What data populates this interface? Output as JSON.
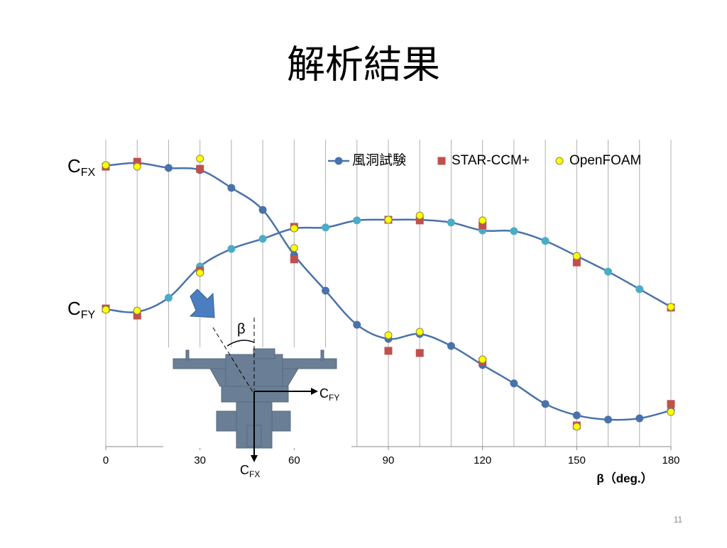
{
  "chart_data": {
    "type": "line",
    "title": "解析結果",
    "x_label": "β（deg.）",
    "page_number": "11",
    "cfx_label": {
      "main": "C",
      "sub": "FX"
    },
    "cfy_label": {
      "main": "C",
      "sub": "FY"
    },
    "diagram": {
      "angle": "β",
      "fy": {
        "main": "C",
        "sub": "FY"
      },
      "fx": {
        "main": "C",
        "sub": "FX"
      }
    },
    "x": [
      0,
      10,
      20,
      30,
      40,
      50,
      60,
      70,
      80,
      90,
      100,
      110,
      120,
      130,
      140,
      150,
      160,
      170,
      180
    ],
    "xlim": [
      0,
      180
    ],
    "xticks": [
      0,
      30,
      60,
      90,
      120,
      150,
      180
    ],
    "x_gridlines": [
      0,
      10,
      20,
      30,
      40,
      50,
      60,
      70,
      80,
      90,
      100,
      110,
      120,
      130,
      140,
      150,
      160,
      170,
      180
    ],
    "ylim": [
      0,
      100
    ],
    "series": [
      {
        "name": "風洞試験",
        "marker": "line-circle",
        "color": "#4a72aa",
        "color_fy": "#4bacc6",
        "cfx": [
          91.5,
          92.4,
          90.8,
          90.1,
          84.3,
          77.1,
          62.4,
          50.8,
          39.7,
          35.1,
          36.7,
          32.8,
          26.6,
          20.6,
          13.9,
          10.2,
          8.8,
          9.2,
          11.8
        ],
        "cfy": [
          44.8,
          43.9,
          48.5,
          58.7,
          64.4,
          67.7,
          71.1,
          71.4,
          73.7,
          73.9,
          73.9,
          73.0,
          70.4,
          70.2,
          67.0,
          62.1,
          57.0,
          51.3,
          45.5
        ]
      },
      {
        "name": "STAR-CCM+",
        "marker": "square",
        "color": "#c0504d",
        "cfx": [
          91.2,
          92.8,
          null,
          90.5,
          null,
          null,
          61.0,
          null,
          null,
          31.2,
          30.5,
          null,
          27.7,
          null,
          null,
          6.9,
          null,
          null,
          13.9
        ],
        "cfy": [
          45.0,
          42.7,
          null,
          57.3,
          null,
          null,
          71.6,
          null,
          null,
          73.9,
          73.7,
          null,
          72.1,
          null,
          null,
          60.0,
          null,
          null,
          45.3
        ]
      },
      {
        "name": "OpenFOAM",
        "marker": "circle",
        "color": "#ffff00",
        "cfx": [
          91.7,
          91.2,
          null,
          93.8,
          null,
          null,
          64.7,
          null,
          null,
          36.3,
          37.4,
          null,
          28.4,
          null,
          null,
          6.5,
          null,
          null,
          11.3
        ],
        "cfy": [
          44.6,
          44.3,
          null,
          56.6,
          null,
          null,
          71.1,
          null,
          null,
          73.9,
          75.3,
          null,
          73.7,
          null,
          null,
          62.1,
          null,
          null,
          45.5
        ]
      }
    ]
  }
}
